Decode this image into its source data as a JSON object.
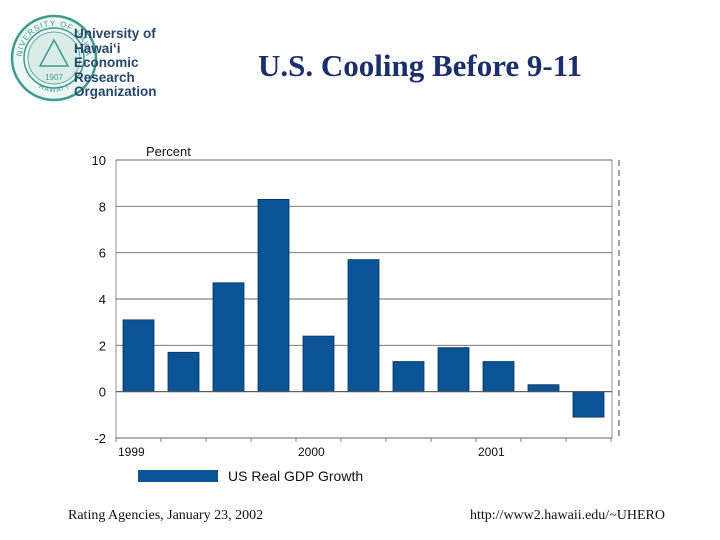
{
  "logo": {
    "seal_top_text": "UNIVERSITY OF HAWAII",
    "seal_bottom_text": "HAWAI'I",
    "seal_year": "1907",
    "lines": [
      "University of",
      "Hawai‘i",
      "Economic",
      "Research",
      "Organization"
    ],
    "colors": {
      "navy": "#27466e",
      "teal": "#3f9a8f"
    }
  },
  "slide": {
    "title": "U.S. Cooling Before 9-11",
    "footer_left": "Rating Agencies, January 23, 2002",
    "footer_right": "http://www2.hawaii.edu/~UHERO"
  },
  "chart_data": {
    "type": "bar",
    "title": "",
    "ylabel": "Percent",
    "xlabel": "",
    "ylim": [
      -2,
      10
    ],
    "yticks": [
      10,
      8,
      6,
      4,
      2,
      0,
      -2
    ],
    "categories": [
      "1999 Q1",
      "1999 Q2",
      "1999 Q3",
      "1999 Q4",
      "2000 Q1",
      "2000 Q2",
      "2000 Q3",
      "2000 Q4",
      "2001 Q1",
      "2001 Q2",
      "2001 Q3"
    ],
    "x_labels": [
      "1999",
      "2000",
      "2001"
    ],
    "series": [
      {
        "name": "US Real GDP Growth",
        "values": [
          3.1,
          1.7,
          4.7,
          8.3,
          2.4,
          5.7,
          1.3,
          1.9,
          1.3,
          0.3,
          -1.1
        ],
        "color": "#0a5495"
      }
    ],
    "legend": "bottom-left",
    "grid": "horizontal",
    "annotations": [
      "dashed vertical marker after last quarter (9-11)"
    ]
  }
}
